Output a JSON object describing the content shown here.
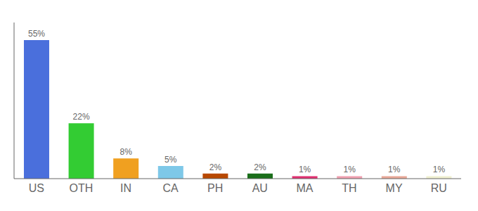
{
  "chart_data": {
    "type": "bar",
    "categories": [
      "US",
      "OTH",
      "IN",
      "CA",
      "PH",
      "AU",
      "MA",
      "TH",
      "MY",
      "RU"
    ],
    "values": [
      55,
      22,
      8,
      5,
      2,
      2,
      1,
      1,
      1,
      1
    ],
    "value_labels": [
      "55%",
      "22%",
      "8%",
      "5%",
      "2%",
      "2%",
      "1%",
      "1%",
      "1%",
      "1%"
    ],
    "colors": [
      "#4a6fdc",
      "#33cc33",
      "#f0a020",
      "#7ec8e8",
      "#b84800",
      "#1a6e1a",
      "#e03070",
      "#f0a0b0",
      "#e8a898",
      "#f0f0d0"
    ],
    "ylim": [
      0,
      62
    ],
    "data_labels": true,
    "tick_labels": "x",
    "grid": false
  }
}
